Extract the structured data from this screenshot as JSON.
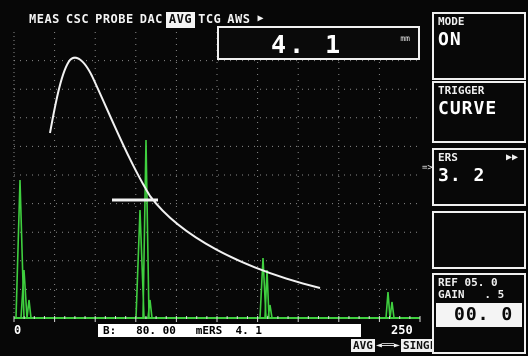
{
  "menu": {
    "items": [
      "MEAS",
      "CSC",
      "PROBE",
      "DAC",
      "AVG",
      "TCG",
      "AWS"
    ],
    "active": "AVG",
    "more_arrow": "▶"
  },
  "readout": {
    "value": "4. 1",
    "unit": "mm"
  },
  "plot": {
    "echo_color": "#3fcf3f",
    "curve_color": "#f2f2f2",
    "grid_color": "#8a8a8a",
    "x_start_label": "0",
    "x_end_label": "250"
  },
  "status_bar": {
    "text": "B:   80. 00   mERS  4. 1"
  },
  "bottom_mode": {
    "left": "AVG",
    "arrow": "◄══►",
    "right": "SINGLE"
  },
  "panels": {
    "mode": {
      "title": "MODE",
      "value": "ON"
    },
    "trigger": {
      "title": "TRIGGER",
      "value": "CURVE"
    },
    "ers": {
      "title": "ERS",
      "value": "3. 2",
      "arrow": "▶▶",
      "marker": "=>"
    },
    "empty": {},
    "gain": {
      "ref_line": "REF 05. 0",
      "gain_line": "GAIN   . 5",
      "value": "00. 0"
    }
  }
}
